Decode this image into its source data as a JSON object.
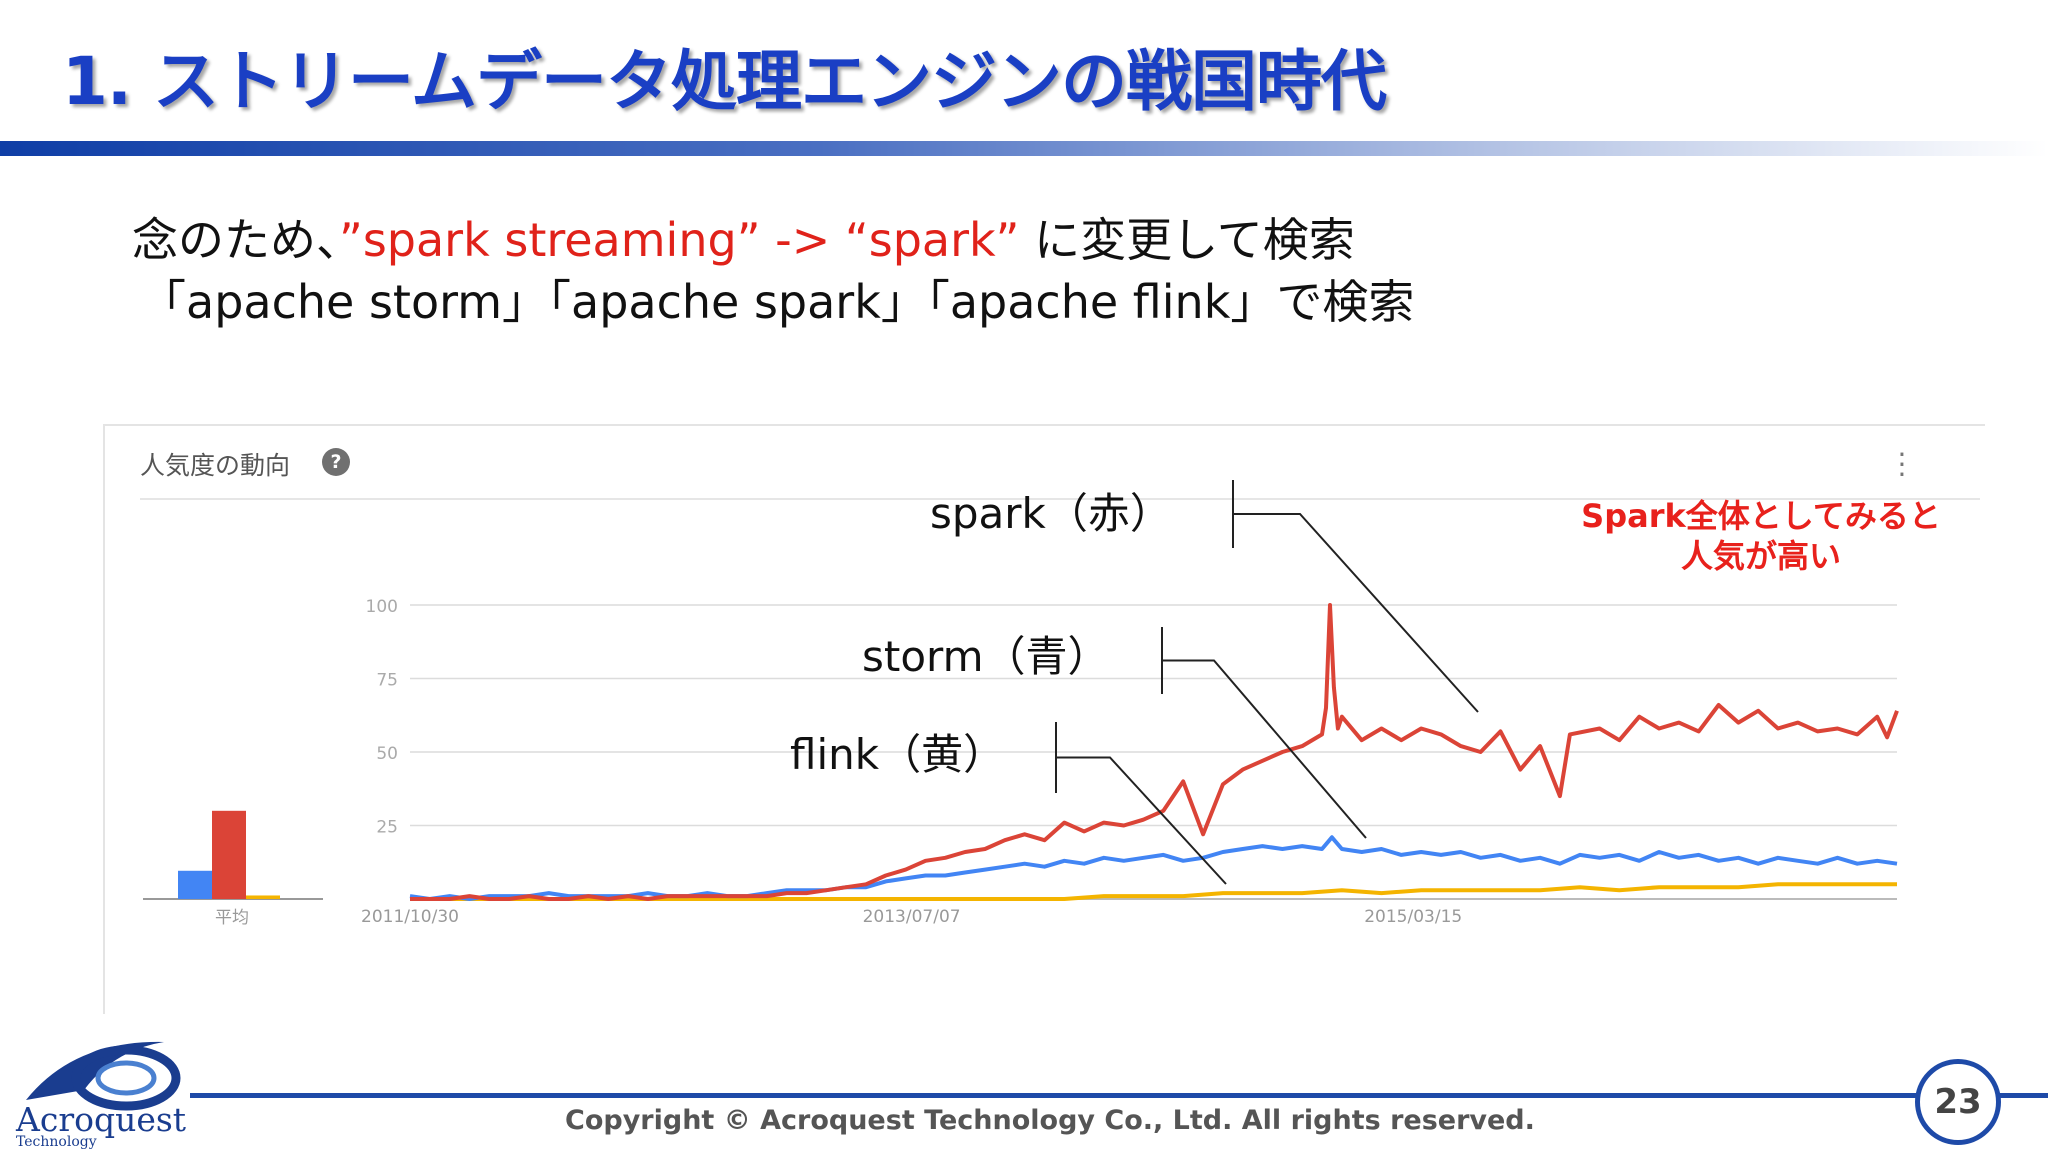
{
  "slide": {
    "title": "1. ストリームデータ処理エンジンの戦国時代",
    "line1_prefix": "念のため、",
    "line1_highlight": "”spark streaming” -> “spark”",
    "line1_suffix": " に変更して検索",
    "line2": "「apache storm」「apache spark」「apache flink」で検索",
    "note_line1": "Spark全体としてみると",
    "note_line2": "人気が高い",
    "copyright": "Copyright © Acroquest Technology Co., Ltd. All rights reserved.",
    "page_number": "23",
    "logo_name": "Acroquest",
    "logo_sub": "Technology"
  },
  "panel": {
    "title": "人気度の動向",
    "help_icon": "help-circle-icon",
    "more_icon": "more-vertical-icon"
  },
  "colors": {
    "title": "#1a3fc4",
    "spark": "#db4437",
    "storm": "#4285f4",
    "flink": "#f4b400",
    "highlight": "#e0221a"
  },
  "chart_data": {
    "type": "line",
    "y_ticks": [
      25,
      50,
      75,
      100
    ],
    "ylim": [
      0,
      100
    ],
    "x_tick_labels": [
      "2011/10/30",
      "2013/07/07",
      "2015/03/15"
    ],
    "xlim": [
      "2011/10/30",
      "2016/10/30"
    ],
    "grid": true,
    "averages_label": "平均",
    "averages": [
      {
        "series": "storm",
        "value": 8
      },
      {
        "series": "spark",
        "value": 25
      },
      {
        "series": "flink",
        "value": 1
      }
    ],
    "annotations": [
      {
        "label": "spark（赤）",
        "series": "spark"
      },
      {
        "label": "storm（青）",
        "series": "storm"
      },
      {
        "label": "flink（黄）",
        "series": "flink"
      }
    ],
    "series": [
      {
        "key": "spark",
        "values": [
          [
            0,
            0
          ],
          [
            0.1,
            0
          ],
          [
            0.2,
            0
          ],
          [
            0.3,
            1
          ],
          [
            0.4,
            0
          ],
          [
            0.5,
            0
          ],
          [
            0.6,
            1
          ],
          [
            0.7,
            0
          ],
          [
            0.8,
            0
          ],
          [
            0.9,
            1
          ],
          [
            1.0,
            0
          ],
          [
            1.1,
            1
          ],
          [
            1.2,
            0
          ],
          [
            1.3,
            1
          ],
          [
            1.4,
            1
          ],
          [
            1.5,
            1
          ],
          [
            1.6,
            1
          ],
          [
            1.7,
            1
          ],
          [
            1.8,
            1
          ],
          [
            1.9,
            2
          ],
          [
            2.0,
            2
          ],
          [
            2.1,
            3
          ],
          [
            2.2,
            4
          ],
          [
            2.3,
            5
          ],
          [
            2.4,
            8
          ],
          [
            2.5,
            10
          ],
          [
            2.6,
            13
          ],
          [
            2.7,
            14
          ],
          [
            2.8,
            16
          ],
          [
            2.9,
            17
          ],
          [
            3.0,
            20
          ],
          [
            3.1,
            22
          ],
          [
            3.2,
            20
          ],
          [
            3.3,
            26
          ],
          [
            3.4,
            23
          ],
          [
            3.5,
            26
          ],
          [
            3.6,
            25
          ],
          [
            3.7,
            27
          ],
          [
            3.8,
            30
          ],
          [
            3.9,
            40
          ],
          [
            4.0,
            22
          ],
          [
            4.1,
            39
          ],
          [
            4.2,
            44
          ],
          [
            4.3,
            47
          ],
          [
            4.4,
            50
          ],
          [
            4.5,
            52
          ],
          [
            4.6,
            56
          ],
          [
            4.62,
            65
          ],
          [
            4.64,
            100
          ],
          [
            4.66,
            72
          ],
          [
            4.68,
            58
          ],
          [
            4.7,
            62
          ],
          [
            4.8,
            54
          ],
          [
            4.9,
            58
          ],
          [
            5.0,
            54
          ],
          [
            5.1,
            58
          ],
          [
            5.2,
            56
          ],
          [
            5.3,
            52
          ],
          [
            5.4,
            50
          ],
          [
            5.5,
            57
          ],
          [
            5.6,
            44
          ],
          [
            5.7,
            52
          ],
          [
            5.8,
            35
          ],
          [
            5.85,
            56
          ],
          [
            6.0,
            58
          ],
          [
            6.1,
            54
          ],
          [
            6.2,
            62
          ],
          [
            6.3,
            58
          ],
          [
            6.4,
            60
          ],
          [
            6.5,
            57
          ],
          [
            6.6,
            66
          ],
          [
            6.7,
            60
          ],
          [
            6.8,
            64
          ],
          [
            6.9,
            58
          ],
          [
            7.0,
            60
          ],
          [
            7.1,
            57
          ],
          [
            7.2,
            58
          ],
          [
            7.3,
            56
          ],
          [
            7.4,
            62
          ],
          [
            7.45,
            55
          ],
          [
            7.5,
            64
          ]
        ]
      },
      {
        "key": "storm",
        "values": [
          [
            0,
            1
          ],
          [
            0.1,
            0
          ],
          [
            0.2,
            1
          ],
          [
            0.3,
            0
          ],
          [
            0.4,
            1
          ],
          [
            0.5,
            1
          ],
          [
            0.6,
            1
          ],
          [
            0.7,
            2
          ],
          [
            0.8,
            1
          ],
          [
            0.9,
            1
          ],
          [
            1.0,
            1
          ],
          [
            1.1,
            1
          ],
          [
            1.2,
            2
          ],
          [
            1.3,
            1
          ],
          [
            1.4,
            1
          ],
          [
            1.5,
            2
          ],
          [
            1.6,
            1
          ],
          [
            1.7,
            1
          ],
          [
            1.8,
            2
          ],
          [
            1.9,
            3
          ],
          [
            2.0,
            3
          ],
          [
            2.1,
            3
          ],
          [
            2.2,
            4
          ],
          [
            2.3,
            4
          ],
          [
            2.4,
            6
          ],
          [
            2.5,
            7
          ],
          [
            2.6,
            8
          ],
          [
            2.7,
            8
          ],
          [
            2.8,
            9
          ],
          [
            2.9,
            10
          ],
          [
            3.0,
            11
          ],
          [
            3.1,
            12
          ],
          [
            3.2,
            11
          ],
          [
            3.3,
            13
          ],
          [
            3.4,
            12
          ],
          [
            3.5,
            14
          ],
          [
            3.6,
            13
          ],
          [
            3.7,
            14
          ],
          [
            3.8,
            15
          ],
          [
            3.9,
            13
          ],
          [
            4.0,
            14
          ],
          [
            4.1,
            16
          ],
          [
            4.2,
            17
          ],
          [
            4.3,
            18
          ],
          [
            4.4,
            17
          ],
          [
            4.5,
            18
          ],
          [
            4.6,
            17
          ],
          [
            4.65,
            21
          ],
          [
            4.7,
            17
          ],
          [
            4.8,
            16
          ],
          [
            4.9,
            17
          ],
          [
            5.0,
            15
          ],
          [
            5.1,
            16
          ],
          [
            5.2,
            15
          ],
          [
            5.3,
            16
          ],
          [
            5.4,
            14
          ],
          [
            5.5,
            15
          ],
          [
            5.6,
            13
          ],
          [
            5.7,
            14
          ],
          [
            5.8,
            12
          ],
          [
            5.9,
            15
          ],
          [
            6.0,
            14
          ],
          [
            6.1,
            15
          ],
          [
            6.2,
            13
          ],
          [
            6.3,
            16
          ],
          [
            6.4,
            14
          ],
          [
            6.5,
            15
          ],
          [
            6.6,
            13
          ],
          [
            6.7,
            14
          ],
          [
            6.8,
            12
          ],
          [
            6.9,
            14
          ],
          [
            7.0,
            13
          ],
          [
            7.1,
            12
          ],
          [
            7.2,
            14
          ],
          [
            7.3,
            12
          ],
          [
            7.4,
            13
          ],
          [
            7.5,
            12
          ]
        ]
      },
      {
        "key": "flink",
        "values": [
          [
            0,
            0
          ],
          [
            0.5,
            0
          ],
          [
            1.0,
            0
          ],
          [
            1.5,
            0
          ],
          [
            2.0,
            0
          ],
          [
            2.5,
            0
          ],
          [
            3.0,
            0
          ],
          [
            3.3,
            0
          ],
          [
            3.5,
            1
          ],
          [
            3.7,
            1
          ],
          [
            3.9,
            1
          ],
          [
            4.1,
            2
          ],
          [
            4.3,
            2
          ],
          [
            4.5,
            2
          ],
          [
            4.7,
            3
          ],
          [
            4.9,
            2
          ],
          [
            5.1,
            3
          ],
          [
            5.3,
            3
          ],
          [
            5.5,
            3
          ],
          [
            5.7,
            3
          ],
          [
            5.9,
            4
          ],
          [
            6.1,
            3
          ],
          [
            6.3,
            4
          ],
          [
            6.5,
            4
          ],
          [
            6.7,
            4
          ],
          [
            6.9,
            5
          ],
          [
            7.1,
            5
          ],
          [
            7.3,
            5
          ],
          [
            7.5,
            5
          ]
        ]
      }
    ]
  }
}
